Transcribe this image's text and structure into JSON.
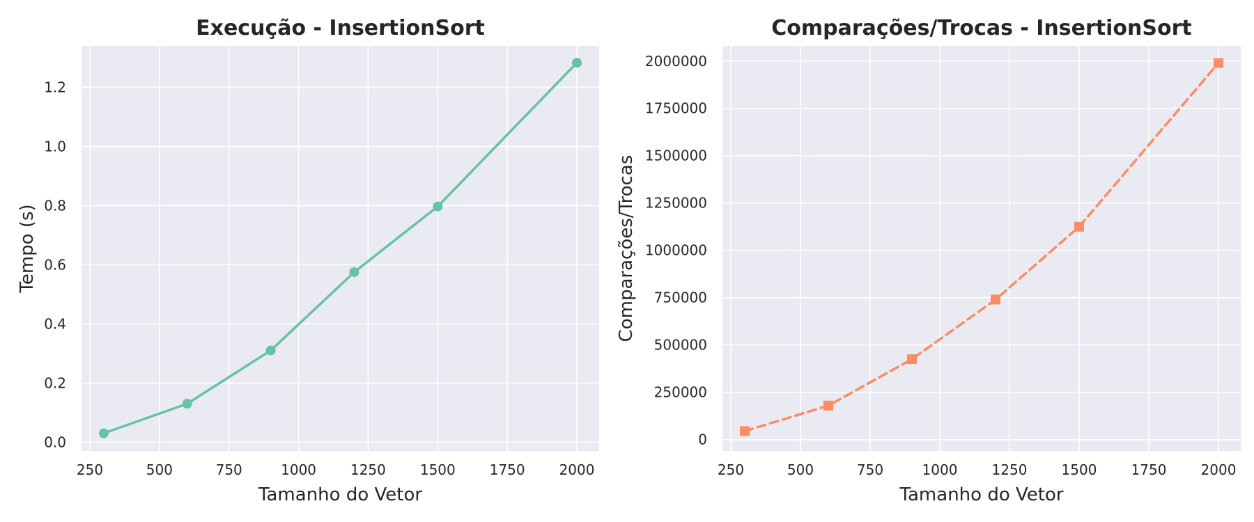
{
  "chart_data": [
    {
      "type": "line",
      "title": "Execução - InsertionSort",
      "xlabel": "Tamanho do Vetor",
      "ylabel": "Tempo (s)",
      "x": [
        300,
        600,
        900,
        1200,
        1500,
        2000
      ],
      "series": [
        {
          "values": [
            0.03,
            0.13,
            0.31,
            0.575,
            0.797,
            1.283
          ]
        }
      ],
      "xlim": [
        220,
        2080
      ],
      "ylim": [
        -0.03,
        1.34
      ],
      "xticks": [
        250,
        500,
        750,
        1000,
        1250,
        1500,
        1750,
        2000
      ],
      "yticks": [
        0.0,
        0.2,
        0.4,
        0.6,
        0.8,
        1.0,
        1.2
      ],
      "ytick_decimals": 1,
      "line_style": "solid",
      "marker": "circle",
      "color": "#66c2a5",
      "grid": true,
      "background": "#eaeaf2"
    },
    {
      "type": "line",
      "title": "Comparações/Trocas - InsertionSort",
      "xlabel": "Tamanho do Vetor",
      "ylabel": "Comparações/Trocas",
      "x": [
        300,
        600,
        900,
        1200,
        1500,
        2000
      ],
      "series": [
        {
          "values": [
            45000,
            180000,
            425000,
            740000,
            1125000,
            1990000
          ]
        }
      ],
      "xlim": [
        220,
        2080
      ],
      "ylim": [
        -60000,
        2080000
      ],
      "xticks": [
        250,
        500,
        750,
        1000,
        1250,
        1500,
        1750,
        2000
      ],
      "yticks": [
        0,
        250000,
        500000,
        750000,
        1000000,
        1250000,
        1500000,
        1750000,
        2000000
      ],
      "ytick_decimals": 0,
      "line_style": "dashed",
      "marker": "square",
      "color": "#fc8d62",
      "grid": true,
      "background": "#eaeaf2"
    }
  ]
}
